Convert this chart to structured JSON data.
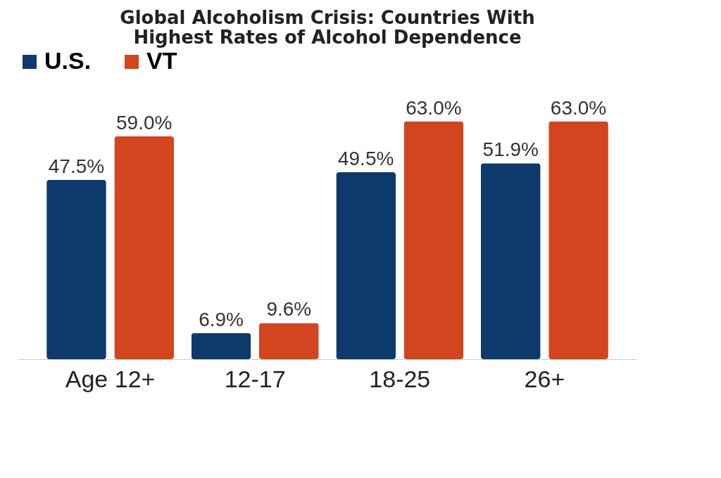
{
  "chart_data": {
    "type": "bar",
    "title": "Global Alcoholism Crisis: Countries With Highest Rates of Alcohol Dependence",
    "categories": [
      "Age 12+",
      "12-17",
      "18-25",
      "26+"
    ],
    "series": [
      {
        "name": "U.S.",
        "color": "#0d3a6b",
        "values": [
          47.5,
          6.9,
          49.5,
          51.9
        ],
        "value_labels": [
          "47.5%",
          "6.9%",
          "49.5%",
          "51.9%"
        ]
      },
      {
        "name": "VT",
        "color": "#d2451e",
        "values": [
          59.0,
          9.6,
          63.0,
          63.0
        ],
        "value_labels": [
          "59.0%",
          "9.6%",
          "63.0%",
          "63.0%"
        ]
      }
    ],
    "legend": "top left",
    "grid": false
  }
}
